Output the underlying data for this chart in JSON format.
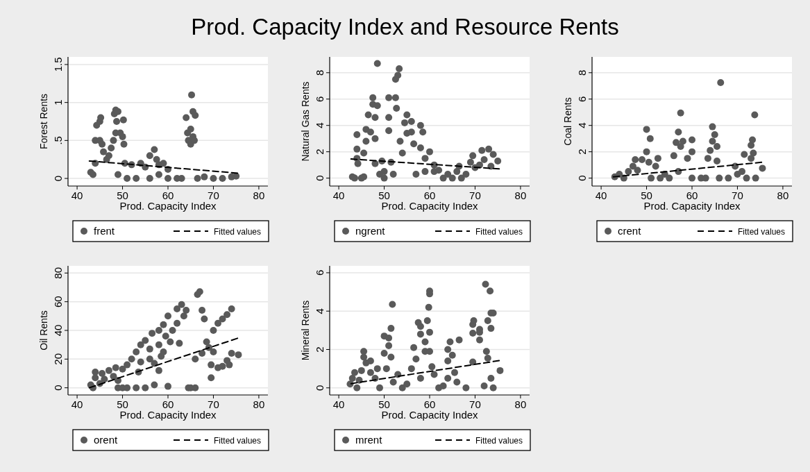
{
  "chart_data": [
    {
      "type": "scatter",
      "title": "Prod. Capacity Index and Resource Rents",
      "xlabel": "Prod. Capacity Index",
      "ylabel": "Forest Rents",
      "xlim": [
        38,
        82
      ],
      "xticks": [
        40,
        50,
        60,
        70,
        80
      ],
      "ylim": [
        -0.1,
        1.6
      ],
      "yticks": [
        0,
        {
          "value": 0.5,
          "label": ".5"
        },
        1,
        1.5
      ],
      "grid": "y",
      "legend": "bottom",
      "series": [
        {
          "name": "frent",
          "marker": "circle",
          "color": "#5a5a5a",
          "x": [
            43,
            43.5,
            44,
            44,
            44.3,
            45,
            45.2,
            45,
            45.5,
            45.8,
            46.5,
            47,
            47.5,
            48,
            48.2,
            48.5,
            49,
            48.7,
            48.5,
            49.5,
            50,
            50.3,
            50.2,
            49,
            50.5,
            51,
            52,
            53,
            54,
            55,
            56,
            57,
            57.5,
            58,
            59,
            60,
            56,
            58,
            60,
            62,
            63,
            64,
            64.3,
            64.5,
            65,
            65,
            65.5,
            65.8,
            65.2,
            65.5,
            66,
            66.5,
            68,
            70,
            72,
            74,
            75
          ],
          "values": [
            0.08,
            0.05,
            0.2,
            0.5,
            0.7,
            0.75,
            0.8,
            0.5,
            0.45,
            0.35,
            0.25,
            0.3,
            0.4,
            0.5,
            0.85,
            0.9,
            0.88,
            0.75,
            0.6,
            0.6,
            0.55,
            0.45,
            0.77,
            0.05,
            0.2,
            0,
            0.18,
            0,
            0.2,
            0.15,
            0.3,
            0.38,
            0.25,
            0.18,
            0.2,
            0.12,
            0,
            0.05,
            0,
            0,
            0,
            0.8,
            0.6,
            0.5,
            0.45,
            0.65,
            0.55,
            0.5,
            1.1,
            0.88,
            0.83,
            0,
            0.02,
            0,
            0,
            0.02,
            0.03
          ]
        },
        {
          "name": "Fitted values",
          "type": "line",
          "color": "#000000",
          "line_style": "dashed",
          "x": [
            42.7,
            75.3
          ],
          "values": [
            0.23,
            0.07
          ],
          "marker": "none"
        }
      ]
    },
    {
      "type": "scatter",
      "xlabel": "Prod. Capacity Index",
      "ylabel": "Natural Gas Rents",
      "xlim": [
        38,
        82
      ],
      "xticks": [
        40,
        50,
        60,
        70,
        80
      ],
      "ylim": [
        -0.6,
        9.2
      ],
      "yticks": [
        0,
        2,
        4,
        6,
        8
      ],
      "grid": "y",
      "legend": "bottom",
      "series": [
        {
          "name": "ngrent",
          "marker": "circle",
          "color": "#5a5a5a",
          "x": [
            43,
            43.5,
            44,
            44,
            44,
            44.2,
            45,
            45.5,
            45.5,
            46,
            46,
            46.5,
            47,
            47.5,
            47.5,
            48,
            48,
            48.5,
            48.5,
            48,
            49,
            49.5,
            50,
            50,
            51,
            51,
            51,
            51.5,
            52,
            52.5,
            52.5,
            52.7,
            53,
            53.3,
            53.5,
            54,
            54.5,
            55,
            55,
            56,
            56,
            56.5,
            57,
            58,
            58,
            58.5,
            59,
            59,
            60,
            61,
            61,
            62,
            63,
            64,
            65,
            66,
            66.5,
            67,
            68,
            69,
            69.5,
            70,
            71,
            71.5,
            72,
            73,
            73.5,
            74,
            75
          ],
          "values": [
            0.1,
            0,
            1.5,
            3.3,
            2.2,
            1.1,
            0,
            0.1,
            1.9,
            2.8,
            3.7,
            4.8,
            3.5,
            6.1,
            5.6,
            4.6,
            3,
            5.5,
            8.7,
            1.1,
            0.3,
            1.3,
            0.5,
            0,
            4.6,
            3.6,
            6.1,
            1.2,
            0.3,
            6.1,
            7.5,
            5.3,
            7.8,
            8.3,
            2.8,
            1.9,
            4.2,
            3.4,
            4.8,
            3.5,
            4.3,
            2.6,
            0.3,
            4,
            2.3,
            3.5,
            1.5,
            0.5,
            2,
            0.5,
            1,
            0.6,
            0,
            0.3,
            0,
            0.5,
            0.9,
            0,
            0.3,
            1.2,
            1.7,
            0.8,
            1,
            2.1,
            1.4,
            2.2,
            0.9,
            1.8,
            1.3
          ]
        },
        {
          "name": "Fitted values",
          "type": "line",
          "color": "#000000",
          "line_style": "dashed",
          "x": [
            42.7,
            75.3
          ],
          "values": [
            1.45,
            0.7
          ],
          "marker": "none"
        }
      ]
    },
    {
      "type": "scatter",
      "xlabel": "Prod. Capacity Index",
      "ylabel": "Coal Rents",
      "xlim": [
        38,
        82
      ],
      "xticks": [
        40,
        50,
        60,
        70,
        80
      ],
      "ylim": [
        -0.6,
        9.2
      ],
      "yticks": [
        0,
        2,
        4,
        6,
        8
      ],
      "grid": "y",
      "legend": "bottom",
      "series": [
        {
          "name": "crent",
          "marker": "circle",
          "color": "#5a5a5a",
          "x": [
            43,
            44,
            45,
            46,
            47,
            47.5,
            48,
            49,
            50,
            50,
            50.8,
            50.5,
            51,
            52,
            52.5,
            53,
            54,
            55,
            56,
            56.5,
            57,
            57.5,
            57.5,
            58,
            57,
            59,
            60,
            60,
            60,
            62,
            63,
            63.5,
            64,
            64.5,
            64.5,
            65,
            65.5,
            65.5,
            66.3,
            66,
            68,
            69.5,
            70,
            71,
            71.5,
            72,
            73,
            73.3,
            73.5,
            73,
            73.8,
            74,
            75.5
          ],
          "values": [
            0.1,
            0.3,
            0,
            0.5,
            0.9,
            1.4,
            0.6,
            1.4,
            2,
            3.7,
            3,
            1.2,
            0,
            0.9,
            1.5,
            0,
            0.3,
            0,
            1.7,
            2.7,
            3.5,
            4.95,
            2.4,
            2.8,
            0.5,
            1.5,
            2.9,
            2,
            0,
            0,
            0,
            1.5,
            2.1,
            2.8,
            3.9,
            3.3,
            2.4,
            1.3,
            7.25,
            0,
            0,
            0.9,
            0.3,
            0.5,
            1.8,
            0,
            2.5,
            2.9,
            1.9,
            1.5,
            4.8,
            0,
            0.75
          ]
        },
        {
          "name": "Fitted values",
          "type": "line",
          "color": "#000000",
          "line_style": "dashed",
          "x": [
            42.7,
            75.3
          ],
          "values": [
            0.1,
            1.2
          ],
          "marker": "none"
        }
      ]
    },
    {
      "type": "scatter",
      "xlabel": "Prod. Capacity Index",
      "ylabel": "Oil Rents",
      "xlim": [
        38,
        82
      ],
      "xticks": [
        40,
        50,
        60,
        70,
        80
      ],
      "ylim": [
        -5,
        85
      ],
      "yticks": [
        0,
        20,
        40,
        60,
        80
      ],
      "grid": "y",
      "legend": "bottom",
      "series": [
        {
          "name": "orent",
          "marker": "circle",
          "color": "#5a5a5a",
          "x": [
            43,
            43.5,
            44,
            44,
            45,
            45.5,
            46,
            47,
            48,
            48.5,
            49,
            49,
            50,
            50,
            51,
            51,
            52,
            53,
            53,
            53.5,
            54,
            54,
            55,
            55,
            56,
            56,
            56.5,
            57,
            57,
            58,
            58,
            58,
            58.5,
            59,
            59,
            59.5,
            60,
            60,
            60.5,
            61,
            62,
            62,
            62.5,
            63,
            63.5,
            64,
            64.5,
            65,
            66,
            66,
            66.5,
            67,
            67.5,
            67.5,
            68,
            68.5,
            69,
            69.5,
            69.5,
            70,
            70,
            71,
            71,
            72,
            72,
            73,
            73,
            73.5,
            74,
            74,
            75.5
          ],
          "values": [
            2,
            0,
            7,
            11,
            3,
            10,
            6,
            12,
            8,
            14,
            5,
            0,
            0,
            13,
            0,
            16,
            20,
            0,
            25,
            11,
            18,
            30,
            0,
            33,
            27,
            20,
            38,
            2,
            17,
            40,
            30,
            12,
            22,
            44,
            25,
            36,
            50,
            1,
            32,
            40,
            55,
            45,
            31,
            58,
            50,
            54,
            0,
            0,
            0,
            20,
            65,
            67,
            54,
            24,
            48,
            32,
            28,
            7,
            16,
            25,
            40,
            14,
            45,
            48,
            15,
            51,
            19,
            16,
            55,
            24,
            23
          ]
        },
        {
          "name": "Fitted values",
          "type": "line",
          "color": "#000000",
          "line_style": "dashed",
          "x": [
            42.7,
            75.3
          ],
          "values": [
            0,
            34.5
          ],
          "marker": "none"
        }
      ]
    },
    {
      "type": "scatter",
      "xlabel": "Prod. Capacity Index",
      "ylabel": "Mineral Rents",
      "xlim": [
        38,
        82
      ],
      "xticks": [
        40,
        50,
        60,
        70,
        80
      ],
      "ylim": [
        -0.37,
        6.36
      ],
      "yticks": [
        0,
        2,
        4,
        6
      ],
      "grid": "y",
      "legend": "bottom",
      "series": [
        {
          "name": "mrent",
          "marker": "circle",
          "color": "#5a5a5a",
          "x": [
            42.5,
            43,
            43.5,
            44,
            44.5,
            45,
            45.5,
            45.5,
            46,
            47,
            47,
            48,
            48.5,
            49,
            50,
            50,
            50.5,
            51,
            51,
            51.5,
            51.5,
            51.8,
            52,
            53,
            54,
            55,
            56,
            56.5,
            57,
            57.5,
            58,
            58,
            58,
            59,
            59,
            59.5,
            59.8,
            60,
            60,
            60,
            60,
            60.5,
            61,
            62,
            63,
            64,
            64,
            64,
            64.5,
            65,
            65.5,
            66,
            66.5,
            68,
            69.5,
            69.5,
            69.5,
            69.7,
            71,
            71,
            71,
            72,
            72.3,
            72.5,
            72.8,
            72.8,
            73.3,
            73.5,
            73.5,
            73.5,
            74,
            74,
            75.5
          ],
          "values": [
            0.2,
            0.5,
            0.8,
            0,
            0.4,
            0.9,
            1.6,
            1.9,
            1.3,
            1.4,
            0.8,
            0.5,
            1,
            0,
            1.8,
            2.7,
            1,
            2.2,
            2.6,
            3.1,
            1.6,
            4.35,
            0.3,
            0.7,
            0,
            0.2,
            1,
            2.1,
            1.5,
            3.4,
            2.8,
            3.2,
            0.5,
            1.9,
            2.4,
            3.5,
            4.2,
            4.9,
            5.05,
            2.9,
            1.9,
            1.1,
            0.7,
            0,
            0.1,
            0.5,
            1.4,
            2,
            2.4,
            1.7,
            0.8,
            0.3,
            2.5,
            0,
            1.35,
            2.85,
            3.3,
            3.5,
            2.5,
            2.9,
            3.05,
            0.1,
            5.4,
            1.9,
            1.55,
            3.5,
            5.05,
            3.9,
            3.1,
            0.5,
            3.9,
            0,
            0.9
          ]
        },
        {
          "name": "Fitted values",
          "type": "line",
          "color": "#000000",
          "line_style": "dashed",
          "x": [
            42.7,
            75.3
          ],
          "values": [
            0.22,
            1.42
          ],
          "marker": "none"
        }
      ]
    }
  ]
}
